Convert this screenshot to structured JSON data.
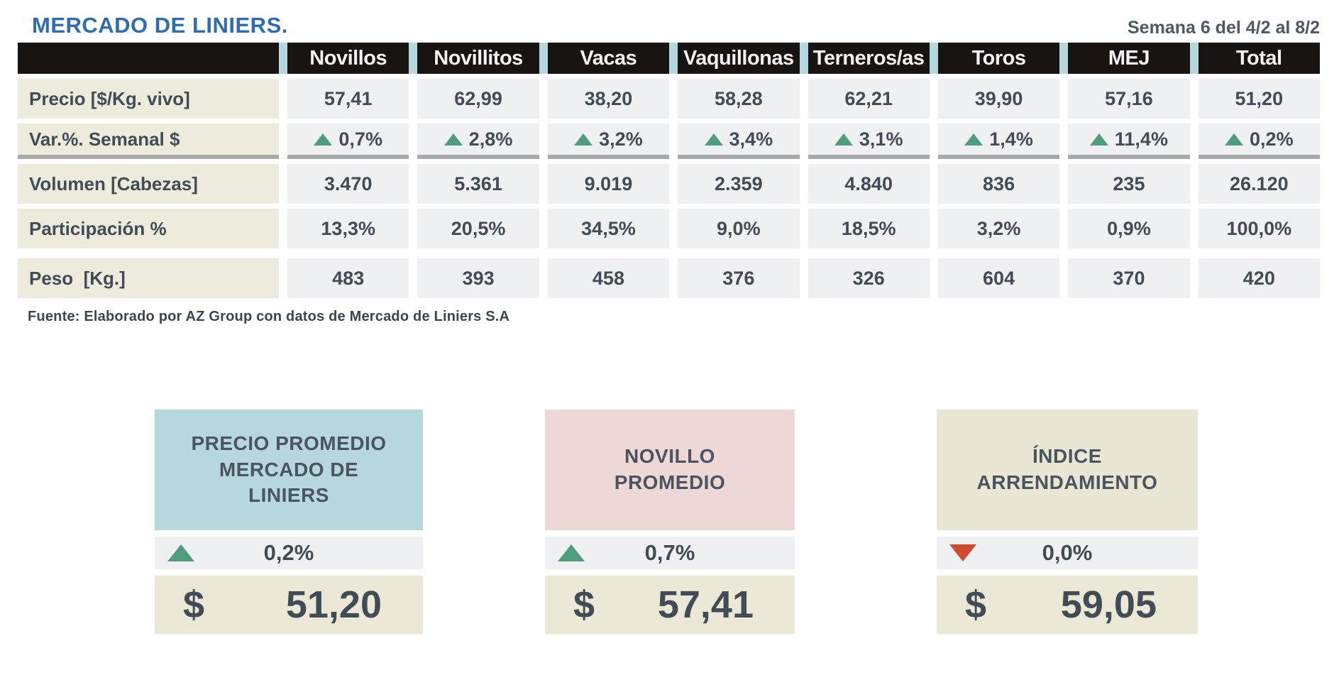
{
  "colors": {
    "title_blue": "#2e6db4",
    "week_text": "#4d5963",
    "header_bg": "#181411",
    "header_strip": "#b5d8e0",
    "label_bg": "#edebdb",
    "cell_bg": "#eef0f2",
    "text_dark": "#414c57",
    "accent_green": "#4e9d7e",
    "accent_red": "#d3492c",
    "divider_gray": "#a8a9ab",
    "value_bg": "#ebe9d6"
  },
  "chart_data": {
    "type": "table",
    "title": "MERCADO DE LINIERS.",
    "subtitle": "Semana 6 del 4/2 al 8/2",
    "source": "Fuente: Elaborado por AZ Group con datos de Mercado de Liniers S.A",
    "categories": [
      "Novillos",
      "Novillitos",
      "Vacas",
      "Vaquillonas",
      "Terneros/as",
      "Toros",
      "MEJ",
      "Total"
    ],
    "rows": [
      {
        "label": "Precio [$/Kg. vivo]",
        "trend": null,
        "values": [
          "57,41",
          "62,99",
          "38,20",
          "58,28",
          "62,21",
          "39,90",
          "57,16",
          "51,20"
        ]
      },
      {
        "label": "Var.%. Semanal $",
        "trend": "up",
        "values": [
          "0,7%",
          "2,8%",
          "3,2%",
          "3,4%",
          "3,1%",
          "1,4%",
          "11,4%",
          "0,2%"
        ]
      },
      {
        "label": "Volumen [Cabezas]",
        "trend": null,
        "values": [
          "3.470",
          "5.361",
          "9.019",
          "2.359",
          "4.840",
          "836",
          "235",
          "26.120"
        ]
      },
      {
        "label": "Participación %",
        "trend": null,
        "values": [
          "13,3%",
          "20,5%",
          "34,5%",
          "9,0%",
          "18,5%",
          "3,2%",
          "0,9%",
          "100,0%"
        ]
      },
      {
        "label": "Peso  [Kg.]",
        "trend": null,
        "values": [
          "483",
          "393",
          "458",
          "376",
          "326",
          "604",
          "370",
          "420"
        ]
      }
    ],
    "kpis": [
      {
        "title": "PRECIO PROMEDIO\nMERCADO DE\nLINIERS",
        "trend": "up",
        "pct": "0,2%",
        "currency": "$",
        "value": "51,20",
        "header_bg": "#b7d7de"
      },
      {
        "title": "NOVILLO\nPROMEDIO",
        "trend": "up",
        "pct": "0,7%",
        "currency": "$",
        "value": "57,41",
        "header_bg": "#edd8d6"
      },
      {
        "title": "ÍNDICE\nARRENDAMIENTO",
        "trend": "down",
        "pct": "0,0%",
        "currency": "$",
        "value": "59,05",
        "header_bg": "#e9e7d3"
      }
    ]
  }
}
